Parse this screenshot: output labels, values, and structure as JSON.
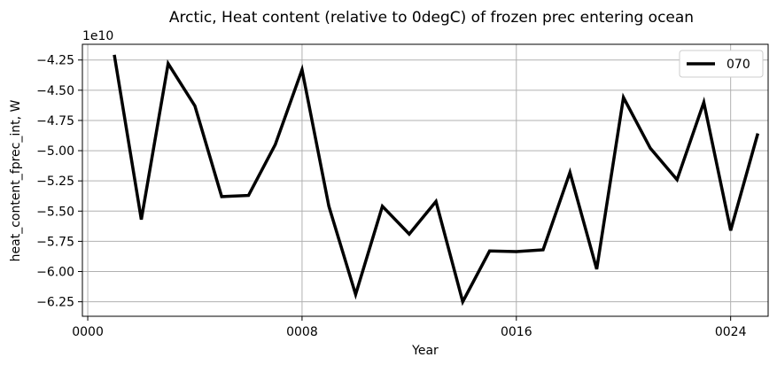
{
  "chart_data": {
    "type": "line",
    "title": "Arctic, Heat content (relative to 0degC) of frozen prec entering ocean",
    "xlabel": "Year",
    "ylabel": "heat_content_fprec_int, W",
    "y_offset_label": "1e10",
    "y_multiplier": 10000000000.0,
    "xlim": [
      -0.2,
      25.4
    ],
    "ylim": [
      -6.37,
      -4.12
    ],
    "x_ticks": [
      0,
      8,
      16,
      24
    ],
    "x_tick_labels": [
      "0000",
      "0008",
      "0016",
      "0024"
    ],
    "y_ticks": [
      -4.25,
      -4.5,
      -4.75,
      -5.0,
      -5.25,
      -5.5,
      -5.75,
      -6.0,
      -6.25
    ],
    "y_tick_labels": [
      "−4.25",
      "−4.50",
      "−4.75",
      "−5.00",
      "−5.25",
      "−5.50",
      "−5.75",
      "−6.00",
      "−6.25"
    ],
    "grid": true,
    "legend_position": "top-right",
    "series": [
      {
        "name": "070",
        "color": "#000000",
        "x": [
          1,
          2,
          3,
          4,
          5,
          6,
          7,
          8,
          9,
          10,
          11,
          12,
          13,
          14,
          15,
          16,
          17,
          18,
          19,
          20,
          21,
          22,
          23,
          24,
          25
        ],
        "values": [
          -4.22,
          -5.57,
          -4.28,
          -4.63,
          -5.38,
          -5.37,
          -4.95,
          -4.33,
          -5.46,
          -6.19,
          -5.46,
          -5.69,
          -5.42,
          -6.25,
          -5.83,
          -5.835,
          -5.82,
          -5.18,
          -5.98,
          -4.56,
          -4.98,
          -5.24,
          -4.6,
          -5.66,
          -4.87
        ]
      }
    ]
  }
}
